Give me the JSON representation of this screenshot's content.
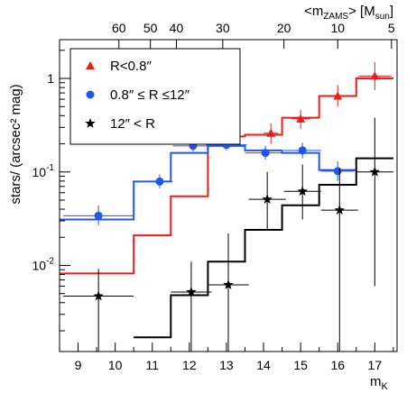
{
  "chart_data": {
    "type": "scatter",
    "xlabel": "m",
    "xlabel_sub": "K",
    "ylabel": "stars/ (arcsec² mag)",
    "top_axis": {
      "label_prefix": "<m",
      "label_sub": "ZAMS",
      "label_suffix": "> [M",
      "label_unit_sub": "sun",
      "label_close": "]",
      "ticks": [
        {
          "label": "60",
          "x": 10.1
        },
        {
          "label": "50",
          "x": 10.95
        },
        {
          "label": "40",
          "x": 11.65
        },
        {
          "label": "30",
          "x": 12.9
        },
        {
          "label": "20",
          "x": 14.55
        },
        {
          "label": "10",
          "x": 16.0
        },
        {
          "label": "5",
          "x": 17.45
        }
      ]
    },
    "x_ticks": [
      9,
      10,
      11,
      12,
      13,
      14,
      15,
      16,
      17
    ],
    "xlim": [
      8.5,
      17.6
    ],
    "ylim": [
      0.0012,
      2.6
    ],
    "y_scale": "log",
    "y_tick_labels": [
      {
        "value": 1,
        "label": "1"
      },
      {
        "value": 0.1,
        "label": "10",
        "exp": "-1"
      },
      {
        "value": 0.01,
        "label": "10",
        "exp": "-2"
      }
    ],
    "legend": {
      "position": "top-left",
      "entries": [
        {
          "label": "R<0.8″",
          "color": "#ee1c1c",
          "marker": "triangle"
        },
        {
          "label": "0.8″ ≤ R ≤12″",
          "color": "#2255ee",
          "marker": "circle"
        },
        {
          "label": "12″ < R",
          "color": "#000000",
          "marker": "star"
        }
      ]
    },
    "series": [
      {
        "color": "#ee1c1c",
        "marker": "triangle",
        "step_edges": [
          8.5,
          9.5,
          10.5,
          11.5,
          12.5,
          13.5,
          14.5,
          15.5,
          16.5,
          17.5
        ],
        "step_values": [
          0.0082,
          0.0082,
          0.021,
          0.055,
          0.24,
          0.25,
          0.38,
          0.65,
          1.0
        ],
        "points": [
          {
            "x": 14.2,
            "y": 0.26,
            "xerr": 0.2,
            "ylo": 0.2,
            "yhi": 0.33
          },
          {
            "x": 15.0,
            "y": 0.37,
            "xerr": 0.25,
            "ylo": 0.29,
            "yhi": 0.46
          },
          {
            "x": 16.0,
            "y": 0.65,
            "xerr": 0.35,
            "ylo": 0.5,
            "yhi": 0.85
          },
          {
            "x": 17.0,
            "y": 1.06,
            "xerr": 0.45,
            "ylo": 0.75,
            "yhi": 1.5
          }
        ]
      },
      {
        "color": "#2255ee",
        "marker": "circle",
        "step_edges": [
          8.5,
          9.5,
          10.5,
          11.5,
          12.5,
          13.5,
          14.5,
          15.5,
          16.5
        ],
        "step_values": [
          0.031,
          0.031,
          0.079,
          0.16,
          0.19,
          0.17,
          0.16,
          0.105
        ],
        "points": [
          {
            "x": 9.55,
            "y": 0.034,
            "xerr": 0.95,
            "ylo": 0.027,
            "yhi": 0.044
          },
          {
            "x": 11.2,
            "y": 0.079,
            "xerr": 0.35,
            "ylo": 0.067,
            "yhi": 0.094
          },
          {
            "x": 12.1,
            "y": 0.19,
            "xerr": 0.55,
            "ylo": 0.165,
            "yhi": 0.22
          },
          {
            "x": 13.0,
            "y": 0.195,
            "xerr": 0.55,
            "ylo": 0.17,
            "yhi": 0.225
          },
          {
            "x": 14.05,
            "y": 0.16,
            "xerr": 0.55,
            "ylo": 0.135,
            "yhi": 0.19
          },
          {
            "x": 15.05,
            "y": 0.17,
            "xerr": 0.5,
            "ylo": 0.14,
            "yhi": 0.205
          },
          {
            "x": 16.0,
            "y": 0.102,
            "xerr": 0.45,
            "ylo": 0.08,
            "yhi": 0.13
          }
        ]
      },
      {
        "color": "#000000",
        "marker": "star",
        "step_edges": [
          10.5,
          11.5,
          12.5,
          13.5,
          14.5,
          15.5,
          16.5,
          17.5
        ],
        "step_values": [
          0.0017,
          0.0048,
          0.011,
          0.024,
          0.044,
          0.073,
          0.14
        ],
        "points": [
          {
            "x": 9.55,
            "y": 0.0047,
            "xerr": 0.95,
            "ylo": 0.0012,
            "yhi": 0.0092
          },
          {
            "x": 12.05,
            "y": 0.0052,
            "xerr": 0.55,
            "ylo": 0.0012,
            "yhi": 0.011
          },
          {
            "x": 13.05,
            "y": 0.0062,
            "xerr": 0.55,
            "ylo": 0.0012,
            "yhi": 0.022
          },
          {
            "x": 14.1,
            "y": 0.051,
            "xerr": 0.5,
            "ylo": 0.024,
            "yhi": 0.1
          },
          {
            "x": 15.05,
            "y": 0.062,
            "xerr": 0.5,
            "ylo": 0.031,
            "yhi": 0.12
          },
          {
            "x": 16.05,
            "y": 0.039,
            "xerr": 0.5,
            "ylo": 0.0012,
            "yhi": 0.11
          },
          {
            "x": 17.0,
            "y": 0.1,
            "xerr": 0.5,
            "ylo": 0.006,
            "yhi": 0.38
          }
        ]
      }
    ]
  }
}
